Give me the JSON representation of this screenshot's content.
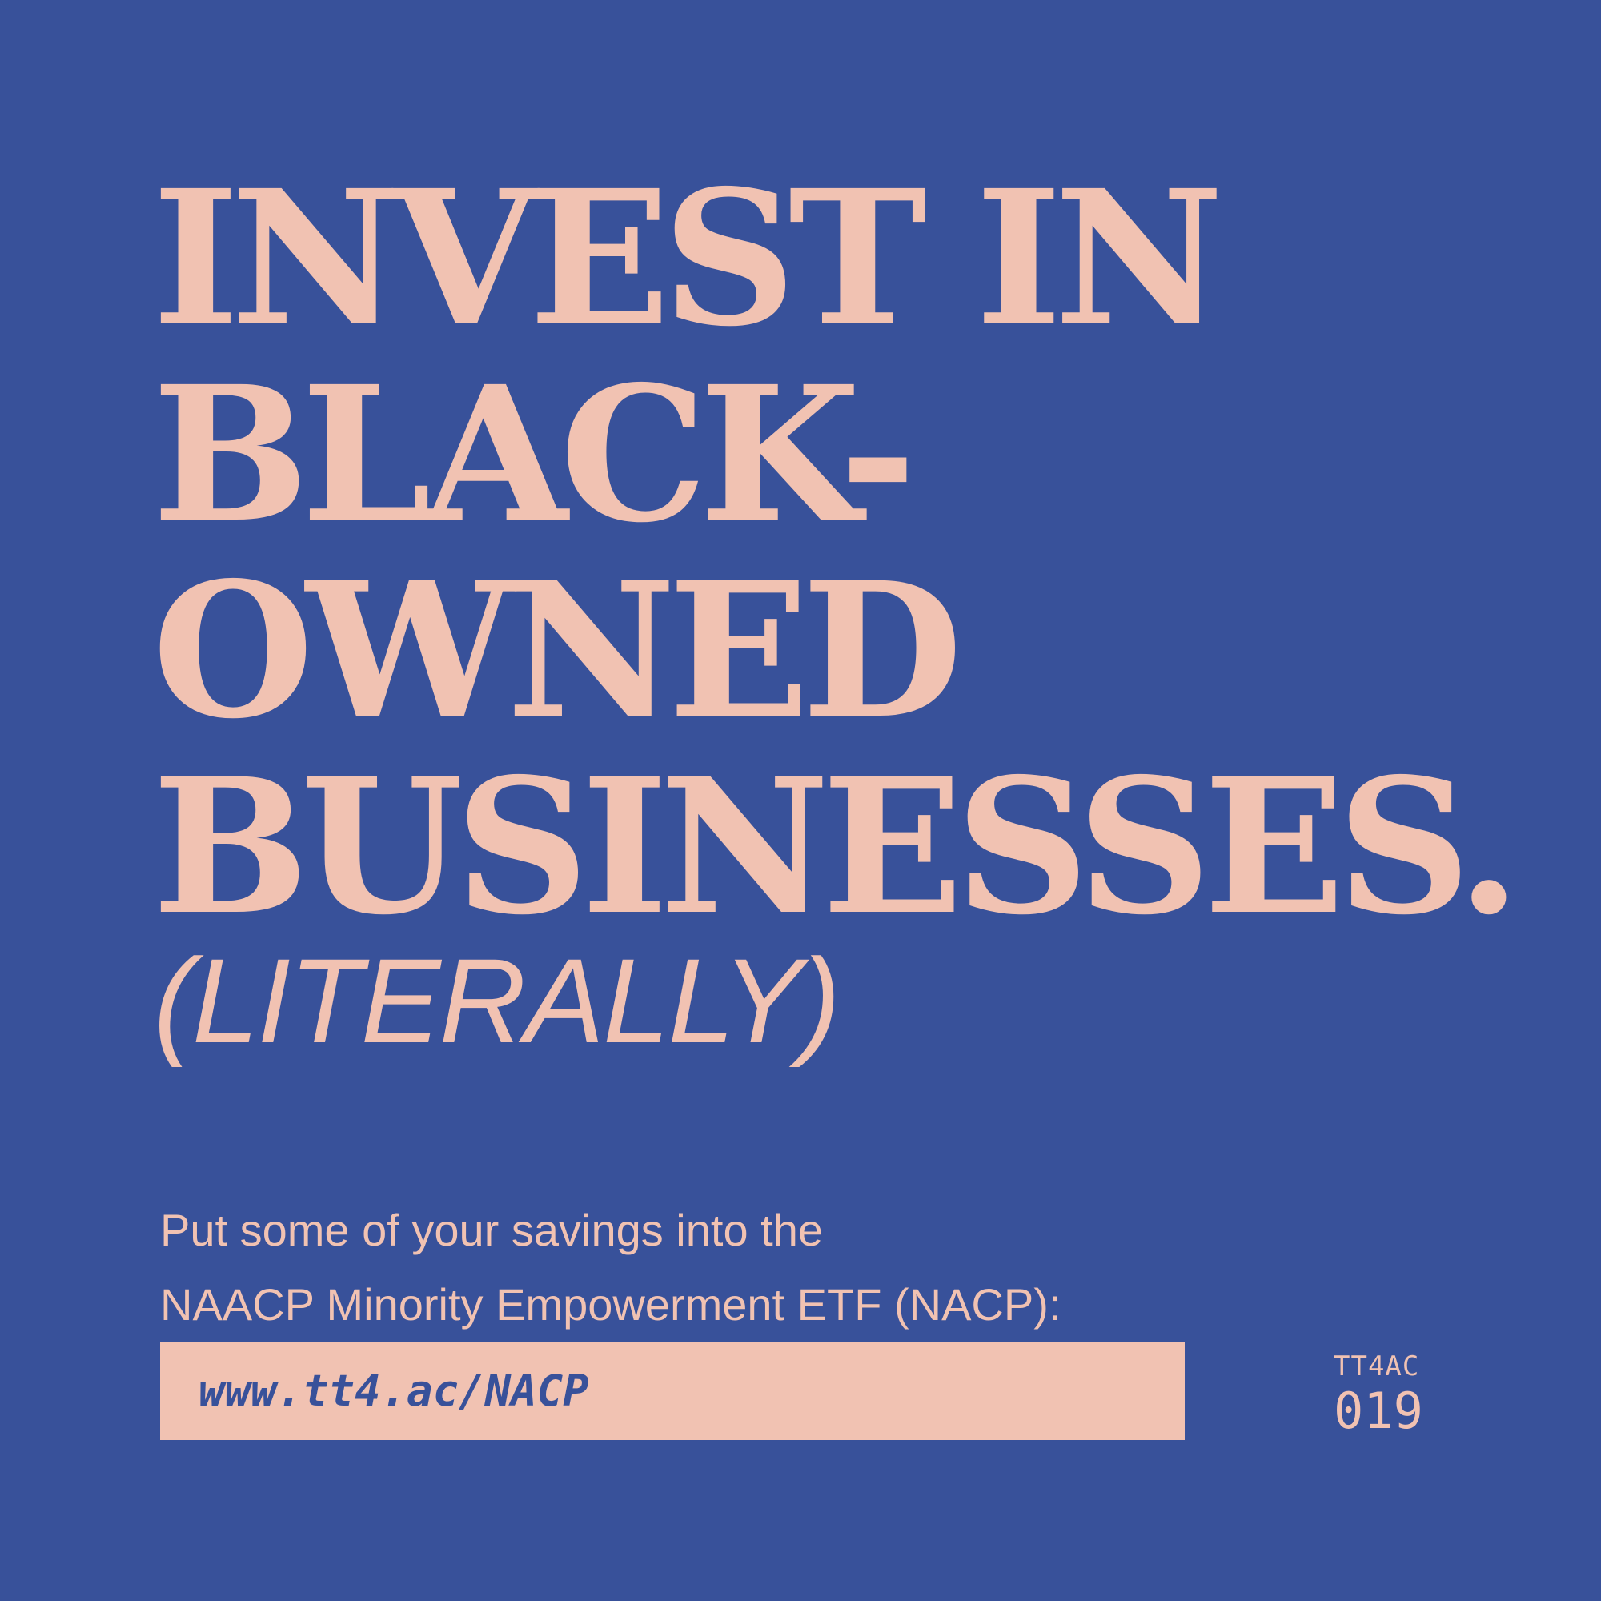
{
  "headline": {
    "line1": "INVEST IN",
    "line2": "BLACK-",
    "line3": "OWNED",
    "line4": "BUSINESSES."
  },
  "aside": "(LITERALLY)",
  "body": {
    "line1": "Put some of your savings into the",
    "line2": "NAACP Minority Empowerment ETF (NACP):"
  },
  "link": {
    "url": "www.tt4.ac/NACP"
  },
  "issue": {
    "code": "TT4AC",
    "number": "019"
  },
  "colors": {
    "background": "#38519a",
    "accent": "#f1c2b2"
  }
}
